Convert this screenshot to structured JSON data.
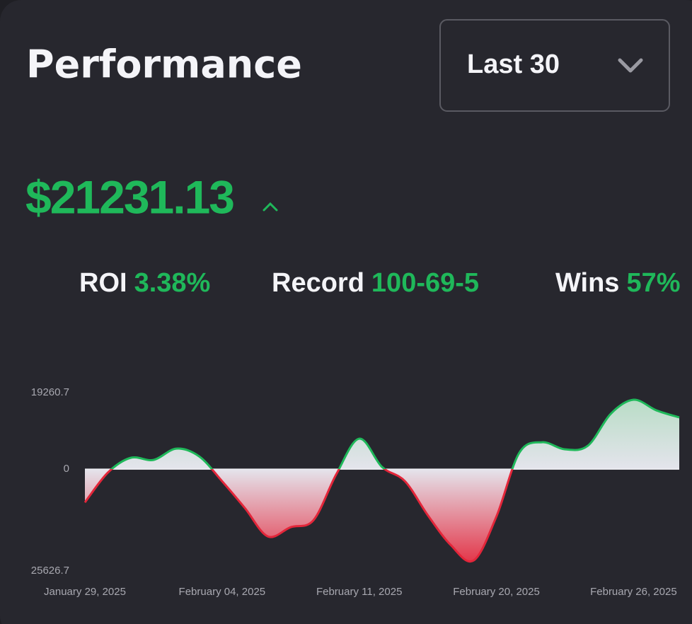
{
  "header": {
    "title": "Performance"
  },
  "dropdown": {
    "label": "Last 30"
  },
  "summary": {
    "amount": "$21231.13"
  },
  "stats": [
    {
      "label": "ROI",
      "value": "3.38%"
    },
    {
      "label": "Record",
      "value": "100-69-5"
    },
    {
      "label": "Wins",
      "value": "57%"
    }
  ],
  "chart_data": {
    "type": "area",
    "categories": [
      "January 29, 2025",
      null,
      null,
      null,
      null,
      null,
      "February 04, 2025",
      null,
      null,
      null,
      null,
      null,
      "February 11, 2025",
      null,
      null,
      null,
      null,
      null,
      "February 20, 2025",
      null,
      null,
      null,
      null,
      null,
      "February 26, 2025",
      null,
      null
    ],
    "values": [
      -8380,
      -890,
      2850,
      2320,
      5170,
      3210,
      -3030,
      -9810,
      -16940,
      -14620,
      -12840,
      -1250,
      7670,
      530,
      -3030,
      -11590,
      -19080,
      -23000,
      -11950,
      4100,
      6780,
      4990,
      5880,
      13910,
      17470,
      14800,
      13020
    ],
    "ylim": [
      -25626.7,
      19260.7
    ],
    "yticks": [
      {
        "value": -25626.7,
        "label": "25626.7"
      },
      0,
      19260.7
    ],
    "positive_color": "#1fb85a",
    "negative_color": "#e3263a"
  }
}
